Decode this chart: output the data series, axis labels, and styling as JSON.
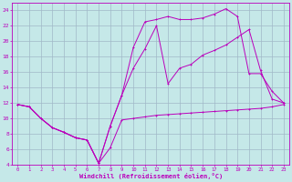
{
  "xlabel": "Windchill (Refroidissement éolien,°C)",
  "xlim": [
    -0.5,
    23.5
  ],
  "ylim": [
    4,
    25
  ],
  "yticks": [
    4,
    6,
    8,
    10,
    12,
    14,
    16,
    18,
    20,
    22,
    24
  ],
  "xticks": [
    0,
    1,
    2,
    3,
    4,
    5,
    6,
    7,
    8,
    9,
    10,
    11,
    12,
    13,
    14,
    15,
    16,
    17,
    18,
    19,
    20,
    21,
    22,
    23
  ],
  "background_color": "#c5e8e8",
  "grid_color": "#a0b8c8",
  "line_color": "#bb00bb",
  "line1_x": [
    0,
    1,
    2,
    3,
    4,
    5,
    6,
    7,
    8,
    9,
    10,
    11,
    12,
    13,
    14,
    15,
    16,
    17,
    18,
    19,
    20,
    21,
    22,
    23
  ],
  "line1_y": [
    11.8,
    11.5,
    10.0,
    8.8,
    8.2,
    7.5,
    7.2,
    4.2,
    6.2,
    9.8,
    10.0,
    10.2,
    10.4,
    10.5,
    10.6,
    10.7,
    10.8,
    10.9,
    11.0,
    11.1,
    11.2,
    11.3,
    11.5,
    11.8
  ],
  "line2_x": [
    0,
    1,
    2,
    3,
    4,
    5,
    6,
    7,
    8,
    9,
    10,
    11,
    12,
    13,
    14,
    15,
    16,
    17,
    18,
    19,
    20,
    21,
    22,
    23
  ],
  "line2_y": [
    11.8,
    11.5,
    10.0,
    8.8,
    8.2,
    7.5,
    7.2,
    4.2,
    9.0,
    13.0,
    19.2,
    22.5,
    22.8,
    23.2,
    22.8,
    22.8,
    23.0,
    23.5,
    24.2,
    23.2,
    15.8,
    15.8,
    13.5,
    12.0
  ],
  "line3_x": [
    0,
    1,
    2,
    3,
    4,
    5,
    6,
    7,
    8,
    9,
    10,
    11,
    12,
    13,
    14,
    15,
    16,
    17,
    18,
    19,
    20,
    21,
    22,
    23
  ],
  "line3_y": [
    11.8,
    11.5,
    10.0,
    8.8,
    8.2,
    7.5,
    7.2,
    4.2,
    9.0,
    13.0,
    16.5,
    19.0,
    22.0,
    14.5,
    16.5,
    17.0,
    18.2,
    18.8,
    19.5,
    20.5,
    21.5,
    16.2,
    12.5,
    12.0
  ]
}
